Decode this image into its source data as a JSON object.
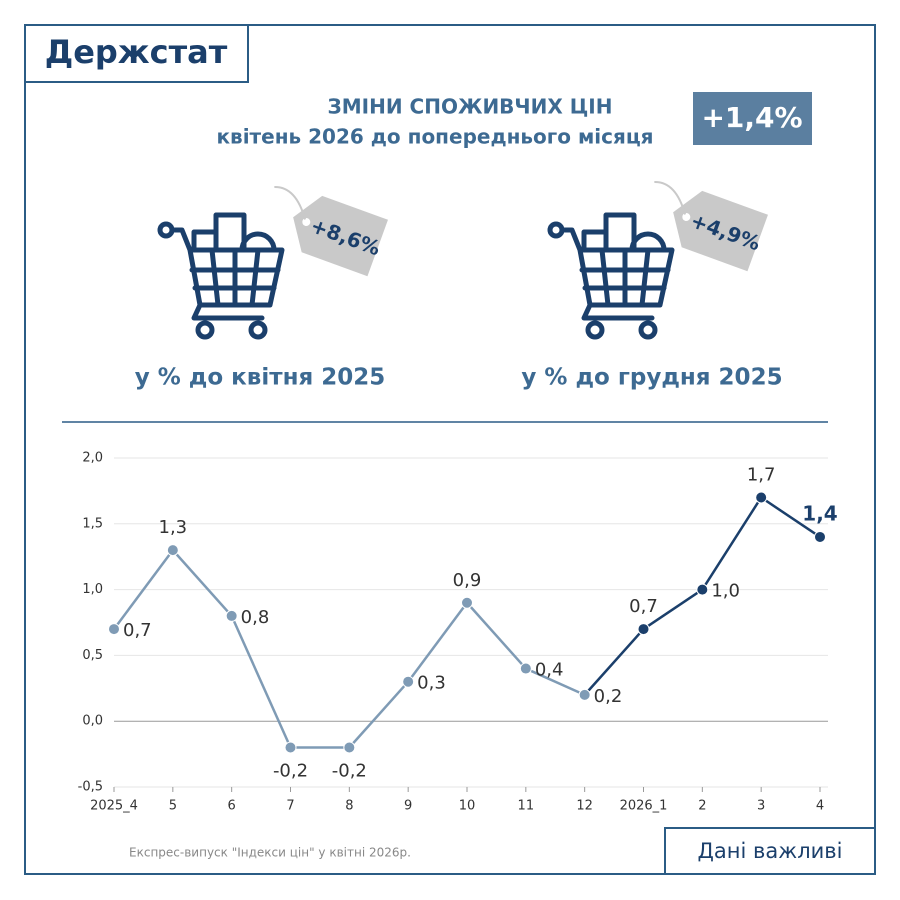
{
  "brand": "Держстат",
  "headline": {
    "title": "ЗМІНИ СПОЖИВЧИХ ЦІН",
    "subtitle": "квітень 2026 до попереднього місяця",
    "badge": "+1,4%"
  },
  "indicators": [
    {
      "tag": "+8,6%",
      "caption": "у % до квітня 2025"
    },
    {
      "tag": "+4,9%",
      "caption": "у % до грудня 2025"
    }
  ],
  "footer": {
    "source": "Експрес-випуск \"Індекси цін\" у квітні 2026р.",
    "button": "Дані важливі"
  },
  "chart_data": {
    "type": "line",
    "categories": [
      "2025_4",
      "5",
      "6",
      "7",
      "8",
      "9",
      "10",
      "11",
      "12",
      "2026_1",
      "2",
      "3",
      "4"
    ],
    "values": [
      0.7,
      1.3,
      0.8,
      -0.2,
      -0.2,
      0.3,
      0.9,
      0.4,
      0.2,
      0.7,
      1.0,
      1.7,
      1.4
    ],
    "value_labels": [
      "0,7",
      "1,3",
      "0,8",
      "-0,2",
      "-0,2",
      "0,3",
      "0,9",
      "0,4",
      "0,2",
      "0,7",
      "1,0",
      "1,7",
      "1,4"
    ],
    "point_colors": [
      "#7f9bb5",
      "#7f9bb5",
      "#7f9bb5",
      "#7f9bb5",
      "#7f9bb5",
      "#7f9bb5",
      "#7f9bb5",
      "#7f9bb5",
      "#7f9bb5",
      "#1b3f6b",
      "#1b3f6b",
      "#1b3f6b",
      "#1b3f6b"
    ],
    "ylim": [
      -0.5,
      2.0
    ],
    "yticks": [
      {
        "value": -0.5,
        "label": "-0,5"
      },
      {
        "value": 0,
        "label": "0,0"
      },
      {
        "value": 0.5,
        "label": "0,5"
      },
      {
        "value": 1.0,
        "label": "1,0"
      },
      {
        "value": 1.5,
        "label": "1,5"
      },
      {
        "value": 2.0,
        "label": "2,0"
      }
    ],
    "grid": true
  }
}
